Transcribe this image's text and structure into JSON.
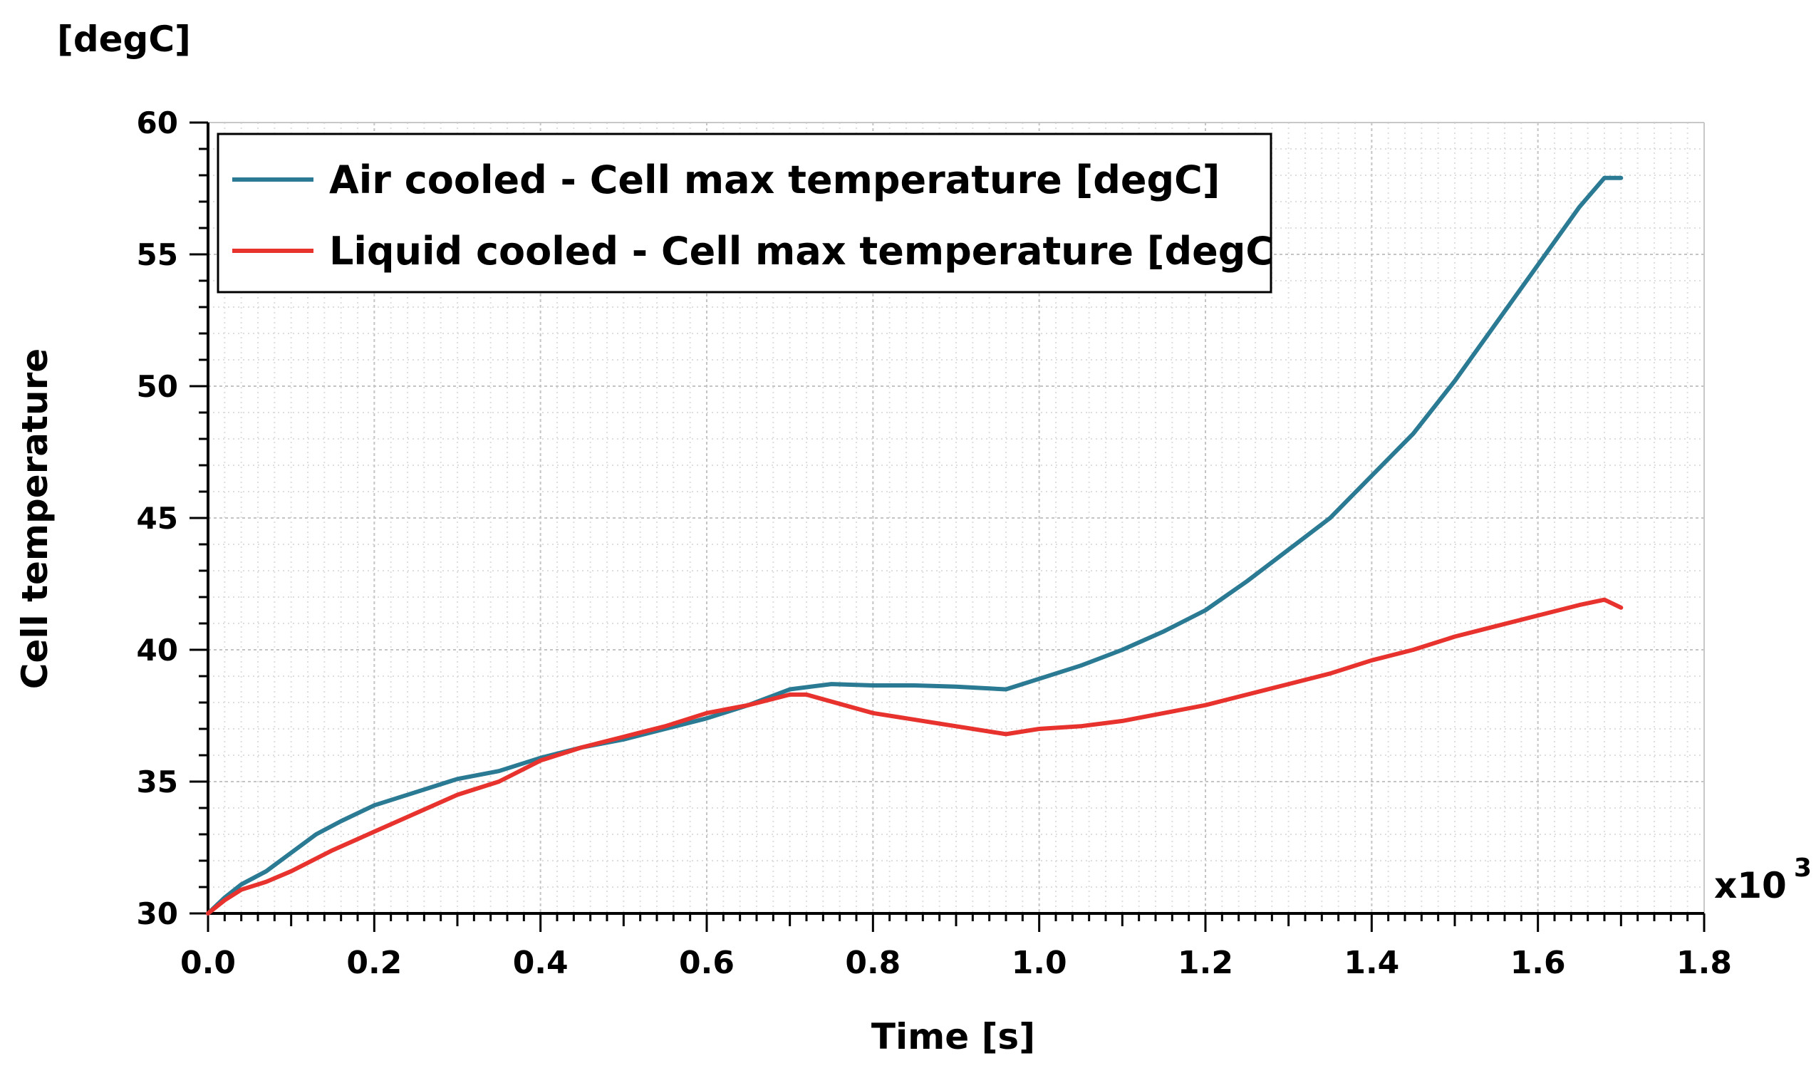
{
  "chart_data": {
    "type": "line",
    "unit_label": "[degC]",
    "xlabel": "Time [s]",
    "ylabel": "Cell temperature",
    "x_multiplier": "x10",
    "x_multiplier_exp": "3",
    "xlim": [
      0.0,
      1.8
    ],
    "ylim": [
      30,
      60
    ],
    "x_ticks": [
      0.0,
      0.2,
      0.4,
      0.6,
      0.8,
      1.0,
      1.2,
      1.4,
      1.6,
      1.8
    ],
    "x_tick_labels": [
      "0.0",
      "0.2",
      "0.4",
      "0.6",
      "0.8",
      "1.0",
      "1.2",
      "1.4",
      "1.6",
      "1.8"
    ],
    "y_ticks": [
      30,
      35,
      40,
      45,
      50,
      55,
      60
    ],
    "y_tick_labels": [
      "30",
      "35",
      "40",
      "45",
      "50",
      "55",
      "60"
    ],
    "grid": true,
    "legend_position": "top-left",
    "series": [
      {
        "name": "Air cooled - Cell max temperature [degC]",
        "color": "#2b7a94",
        "x": [
          0.0,
          0.02,
          0.04,
          0.07,
          0.1,
          0.13,
          0.16,
          0.2,
          0.25,
          0.3,
          0.35,
          0.4,
          0.45,
          0.5,
          0.55,
          0.6,
          0.65,
          0.7,
          0.75,
          0.8,
          0.85,
          0.9,
          0.96,
          1.0,
          1.05,
          1.1,
          1.15,
          1.2,
          1.25,
          1.3,
          1.35,
          1.4,
          1.45,
          1.5,
          1.55,
          1.6,
          1.65,
          1.68,
          1.7
        ],
        "values": [
          30.0,
          30.6,
          31.1,
          31.6,
          32.3,
          33.0,
          33.5,
          34.1,
          34.6,
          35.1,
          35.4,
          35.9,
          36.3,
          36.6,
          37.0,
          37.4,
          37.9,
          38.5,
          38.7,
          38.65,
          38.65,
          38.6,
          38.5,
          38.9,
          39.4,
          40.0,
          40.7,
          41.5,
          42.6,
          43.8,
          45.0,
          46.6,
          48.2,
          50.2,
          52.4,
          54.6,
          56.8,
          57.9,
          57.9
        ]
      },
      {
        "name": "Liquid cooled - Cell max temperature [degC",
        "color": "#e8322d",
        "x": [
          0.0,
          0.02,
          0.04,
          0.07,
          0.1,
          0.15,
          0.2,
          0.25,
          0.3,
          0.35,
          0.4,
          0.45,
          0.5,
          0.55,
          0.6,
          0.65,
          0.7,
          0.72,
          0.8,
          0.9,
          0.96,
          1.0,
          1.05,
          1.1,
          1.15,
          1.2,
          1.25,
          1.3,
          1.35,
          1.4,
          1.45,
          1.5,
          1.55,
          1.6,
          1.65,
          1.68,
          1.7
        ],
        "values": [
          30.0,
          30.5,
          30.9,
          31.2,
          31.6,
          32.4,
          33.1,
          33.8,
          34.5,
          35.0,
          35.8,
          36.3,
          36.7,
          37.1,
          37.6,
          37.9,
          38.3,
          38.3,
          37.6,
          37.1,
          36.8,
          37.0,
          37.1,
          37.3,
          37.6,
          37.9,
          38.3,
          38.7,
          39.1,
          39.6,
          40.0,
          40.5,
          40.9,
          41.3,
          41.7,
          41.9,
          41.6
        ]
      }
    ]
  }
}
